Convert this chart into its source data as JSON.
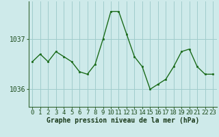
{
  "x": [
    0,
    1,
    2,
    3,
    4,
    5,
    6,
    7,
    8,
    9,
    10,
    11,
    12,
    13,
    14,
    15,
    16,
    17,
    18,
    19,
    20,
    21,
    22,
    23
  ],
  "y": [
    1036.55,
    1036.7,
    1036.55,
    1036.75,
    1036.65,
    1036.55,
    1036.35,
    1036.3,
    1036.5,
    1037.0,
    1037.55,
    1037.55,
    1037.1,
    1036.65,
    1036.45,
    1036.0,
    1036.1,
    1036.2,
    1036.45,
    1036.75,
    1036.8,
    1036.45,
    1036.3,
    1036.3
  ],
  "line_color": "#1a6b1a",
  "marker_color": "#1a6b1a",
  "bg_color": "#ceeaea",
  "grid_color": "#a0cccc",
  "axis_color": "#336633",
  "xlabel": "Graphe pression niveau de la mer (hPa)",
  "ytick_labels": [
    "1036",
    "1037"
  ],
  "ytick_values": [
    1036.0,
    1037.0
  ],
  "ylim": [
    1035.65,
    1037.75
  ],
  "xlim": [
    -0.5,
    23.5
  ],
  "xlabel_fontsize": 7,
  "tick_fontsize": 6.5
}
